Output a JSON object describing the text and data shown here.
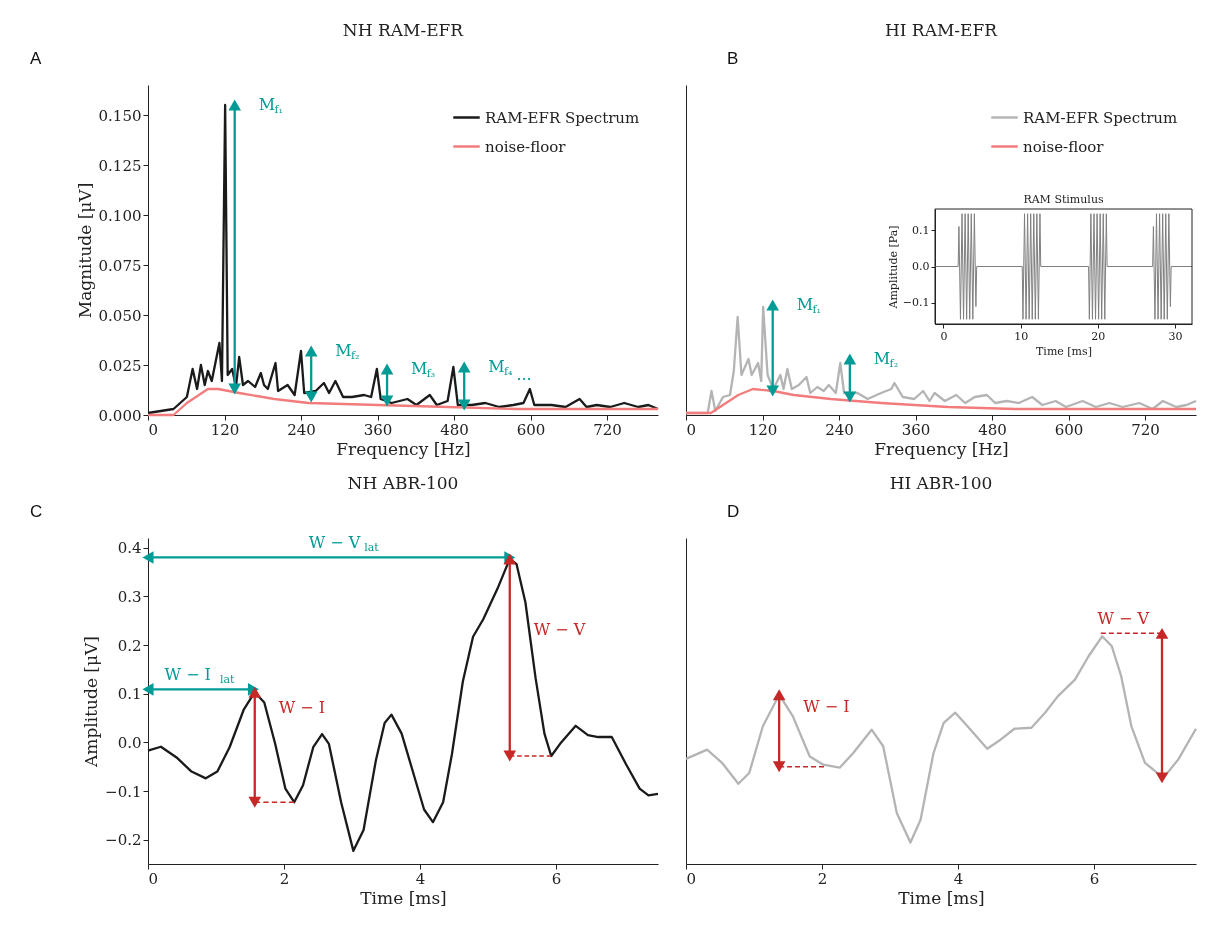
{
  "chart_data": [
    {
      "type": "line",
      "title": "NH RAM-EFR",
      "xlabel": "Frequency [Hz]",
      "ylabel": "Magnitude [μV]",
      "xlim": [
        0,
        800
      ],
      "ylim": [
        0,
        0.165
      ],
      "xticks": [
        0,
        120,
        240,
        360,
        480,
        600,
        720
      ],
      "yticks": [
        {
          "value": 0,
          "label": "0.000"
        },
        0.025,
        {
          "value": 0.05,
          "label": "0.050"
        },
        0.075,
        {
          "value": 0.1,
          "label": "0.100"
        },
        0.125,
        {
          "value": 0.15,
          "label": "0.150"
        }
      ],
      "legend": "top right",
      "annotations": [
        "A",
        {
          "text": "M$_{f₁}$",
          "x": 136,
          "y": 0.155
        },
        {
          "text": "M$_{f₂}$",
          "x": 256,
          "y": 0.032
        },
        {
          "text": "M$_{f₃}$",
          "x": 375,
          "y": 0.023
        },
        {
          "text": "M$_{f₄}$",
          "x": 496,
          "y": 0.024
        },
        {
          "text": "...",
          "x": 599,
          "y": 0.013
        }
      ],
      "series": [
        {
          "name": "RAM-EFR Spectrum",
          "color": "#1a1a1a",
          "x": [
            0,
            40,
            61,
            70,
            77,
            83,
            89,
            94,
            100,
            112,
            116,
            121,
            125,
            132,
            138,
            143,
            149,
            157,
            168,
            177,
            182,
            188,
            200,
            204,
            219,
            230,
            240,
            245,
            263,
            276,
            284,
            294,
            306,
            320,
            339,
            350,
            359,
            365,
            382,
            407,
            421,
            442,
            453,
            470,
            479,
            486,
            508,
            529,
            551,
            573,
            589,
            599,
            606,
            633,
            655,
            677,
            688,
            704,
            725,
            747,
            769,
            785,
            800
          ],
          "values": [
            0.001,
            0.003,
            0.009,
            0.023,
            0.013,
            0.025,
            0.015,
            0.022,
            0.017,
            0.036,
            0.017,
            0.155,
            0.02,
            0.023,
            0.014,
            0.029,
            0.015,
            0.017,
            0.014,
            0.021,
            0.015,
            0.013,
            0.026,
            0.012,
            0.015,
            0.01,
            0.032,
            0.011,
            0.012,
            0.016,
            0.011,
            0.017,
            0.009,
            0.009,
            0.01,
            0.009,
            0.023,
            0.008,
            0.006,
            0.008,
            0.005,
            0.01,
            0.005,
            0.007,
            0.024,
            0.005,
            0.005,
            0.006,
            0.004,
            0.005,
            0.006,
            0.013,
            0.005,
            0.005,
            0.004,
            0.008,
            0.004,
            0.005,
            0.004,
            0.006,
            0.004,
            0.005,
            0.003
          ]
        },
        {
          "name": "noise-floor",
          "color": "#f27c7c",
          "x": [
            0,
            40,
            61,
            94,
            110,
            143,
            198,
            252,
            361,
            470,
            579,
            688,
            800
          ],
          "values": [
            0,
            0,
            0.006,
            0.013,
            0.013,
            0.011,
            0.008,
            0.006,
            0.005,
            0.004,
            0.003,
            0.003,
            0.003
          ]
        },
        {
          "color": "#009b95",
          "marker": "triangle",
          "x": [
            136,
            136
          ],
          "values": [
            0.013,
            0.155
          ]
        },
        {
          "color": "#009b95",
          "marker": "triangle",
          "x": [
            256,
            256
          ],
          "values": [
            0.009,
            0.032
          ]
        },
        {
          "color": "#009b95",
          "marker": "triangle",
          "x": [
            375,
            375
          ],
          "values": [
            0.007,
            0.023
          ]
        },
        {
          "color": "#009b95",
          "marker": "triangle",
          "x": [
            496,
            496
          ],
          "values": [
            0.005,
            0.024
          ]
        }
      ]
    },
    {
      "type": "line",
      "title": "HI RAM-EFR",
      "xlabel": "Frequency [Hz]",
      "xlim": [
        0,
        800
      ],
      "ylim": [
        0,
        0.165
      ],
      "xticks": [
        0,
        120,
        240,
        360,
        480,
        600,
        720
      ],
      "tick_labels": "x",
      "legend": "top right",
      "annotations": [
        "B",
        {
          "text": "M$_{f₁}$",
          "x": 136,
          "y": 0.055
        },
        {
          "text": "M$_{f₂}$",
          "x": 257,
          "y": 0.028
        }
      ],
      "series": [
        {
          "name": "RAM-EFR Spectrum",
          "color": "#b4b4b4",
          "x": [
            0,
            34,
            40,
            46,
            58,
            69,
            75,
            81,
            87,
            98,
            103,
            113,
            118,
            121,
            128,
            137,
            148,
            153,
            159,
            166,
            177,
            189,
            195,
            206,
            216,
            224,
            235,
            242,
            248,
            269,
            285,
            306,
            322,
            327,
            340,
            358,
            372,
            382,
            390,
            406,
            424,
            438,
            453,
            472,
            485,
            503,
            522,
            543,
            559,
            580,
            596,
            622,
            643,
            664,
            685,
            711,
            732,
            748,
            769,
            785,
            800
          ],
          "values": [
            0.001,
            0.001,
            0.012,
            0.002,
            0.009,
            0.01,
            0.022,
            0.049,
            0.02,
            0.028,
            0.02,
            0.026,
            0.017,
            0.054,
            0.02,
            0.013,
            0.02,
            0.013,
            0.023,
            0.013,
            0.015,
            0.019,
            0.011,
            0.014,
            0.012,
            0.015,
            0.011,
            0.026,
            0.011,
            0.011,
            0.008,
            0.011,
            0.013,
            0.016,
            0.009,
            0.008,
            0.012,
            0.007,
            0.011,
            0.007,
            0.01,
            0.006,
            0.009,
            0.01,
            0.006,
            0.007,
            0.006,
            0.009,
            0.005,
            0.007,
            0.004,
            0.007,
            0.004,
            0.006,
            0.004,
            0.006,
            0.003,
            0.007,
            0.004,
            0.005,
            0.007
          ]
        },
        {
          "name": "noise-floor",
          "color": "#f27c7c",
          "x": [
            0,
            39,
            58,
            82,
            105,
            137,
            169,
            227,
            306,
            411,
            516,
            622,
            800
          ],
          "values": [
            0.001,
            0.001,
            0.005,
            0.01,
            0.013,
            0.012,
            0.01,
            0.008,
            0.006,
            0.004,
            0.003,
            0.003,
            0.003
          ]
        },
        {
          "color": "#009b95",
          "marker": "triangle",
          "x": [
            136,
            136
          ],
          "values": [
            0.012,
            0.055
          ]
        },
        {
          "color": "#009b95",
          "marker": "triangle",
          "x": [
            257,
            257
          ],
          "values": [
            0.009,
            0.028
          ]
        }
      ]
    },
    {
      "type": "line",
      "title": "RAM Stimulus",
      "xlabel": "Time [ms]",
      "ylabel": "Amplitude [Pa]",
      "xlim": [
        -1.1,
        32.2
      ],
      "ylim": [
        -0.158,
        0.158
      ],
      "xticks": [
        0,
        10,
        20,
        30
      ],
      "yticks": [
        {
          "value": -0.1,
          "label": "−0.1"
        },
        {
          "value": 0,
          "label": "0.0"
        },
        0.1
      ],
      "series": [
        {
          "color": "#7f7f7f",
          "x": [
            -1.1,
            1.9,
            2.0,
            2.2,
            2.4,
            2.6,
            2.8,
            3.0,
            3.2,
            3.4,
            3.6,
            3.8,
            4.0,
            4.2,
            4.3,
            10.2,
            10.3,
            10.5,
            10.7,
            10.9,
            11.1,
            11.3,
            11.5,
            11.7,
            11.9,
            12.1,
            12.3,
            12.5,
            12.6,
            18.8,
            18.9,
            19.1,
            19.3,
            19.5,
            19.7,
            19.9,
            20.1,
            20.3,
            20.5,
            20.7,
            20.9,
            21.1,
            21.2,
            27.1,
            27.2,
            27.4,
            27.6,
            27.8,
            28.0,
            28.2,
            28.4,
            28.6,
            28.8,
            29.0,
            29.2,
            29.4,
            29.5,
            32.2
          ],
          "values": [
            0,
            0,
            0.11,
            -0.145,
            0.145,
            -0.145,
            0.145,
            -0.145,
            0.145,
            -0.145,
            0.145,
            -0.145,
            0.145,
            -0.11,
            0,
            0,
            -0.145,
            0.145,
            -0.145,
            0.145,
            -0.145,
            0.145,
            -0.145,
            0.145,
            -0.145,
            0.145,
            -0.145,
            0.145,
            0,
            0,
            -0.145,
            0.145,
            -0.145,
            0.145,
            -0.145,
            0.145,
            -0.145,
            0.145,
            -0.145,
            0.145,
            -0.145,
            0.145,
            0,
            0,
            0.11,
            -0.145,
            0.145,
            -0.145,
            0.145,
            -0.145,
            0.145,
            -0.145,
            0.145,
            -0.145,
            0.145,
            -0.11,
            0,
            0
          ]
        }
      ]
    },
    {
      "type": "line",
      "title": "NH ABR-100",
      "xlabel": "Time [ms]",
      "ylabel": "Amplitude [μV]",
      "xlim": [
        0,
        7.5
      ],
      "ylim": [
        -0.25,
        0.42
      ],
      "xticks": [
        0,
        2,
        4,
        6
      ],
      "yticks": [
        {
          "value": -0.2,
          "label": "−0.2"
        },
        {
          "value": -0.1,
          "label": "−0.1"
        },
        {
          "value": 0,
          "label": "0.0"
        },
        0.1,
        0.2,
        0.3,
        0.4
      ],
      "annotations": [
        "C",
        {
          "text": "W − V$_{lat}$",
          "x": 2.9,
          "y": 0.38
        },
        {
          "text": "W − I$_{lat}$",
          "x": 0.78,
          "y": 0.109
        },
        {
          "text": "W − I",
          "x": 1.57,
          "y": 0.071
        },
        {
          "text": "W − V",
          "x": 5.32,
          "y": 0.23
        }
      ],
      "series": [
        {
          "color": "#1a1a1a",
          "x": [
            0,
            0.19,
            0.42,
            0.64,
            0.85,
            1.02,
            1.2,
            1.41,
            1.57,
            1.71,
            1.87,
            2.02,
            2.15,
            2.28,
            2.43,
            2.56,
            2.66,
            2.84,
            3.02,
            3.17,
            3.35,
            3.48,
            3.58,
            3.73,
            3.91,
            4.06,
            4.19,
            4.34,
            4.47,
            4.63,
            4.78,
            4.93,
            5.14,
            5.32,
            5.42,
            5.55,
            5.7,
            5.83,
            5.93,
            6.06,
            6.29,
            6.47,
            6.62,
            6.82,
            7.03,
            7.23,
            7.36,
            7.5
          ],
          "values": [
            -0.017,
            -0.009,
            -0.031,
            -0.06,
            -0.074,
            -0.06,
            -0.01,
            0.068,
            0.103,
            0.082,
            -0.003,
            -0.095,
            -0.123,
            -0.088,
            -0.01,
            0.017,
            -0.003,
            -0.123,
            -0.223,
            -0.18,
            -0.038,
            0.04,
            0.057,
            0.018,
            -0.067,
            -0.138,
            -0.164,
            -0.123,
            -0.024,
            0.125,
            0.217,
            0.253,
            0.316,
            0.377,
            0.366,
            0.288,
            0.132,
            0.018,
            -0.028,
            -0.003,
            0.034,
            0.015,
            0.011,
            0.011,
            -0.045,
            -0.095,
            -0.109,
            -0.106
          ]
        },
        {
          "color": "#009b95",
          "marker": "triangle",
          "x": [
            0,
            5.32
          ],
          "values": [
            0.38,
            0.38
          ]
        },
        {
          "color": "#009b95",
          "marker": "triangle",
          "x": [
            0,
            1.55
          ],
          "values": [
            0.109,
            0.109
          ]
        },
        {
          "color": "#c62828",
          "marker": "triangle",
          "x": [
            1.57,
            1.57
          ],
          "values": [
            0.103,
            -0.123
          ]
        },
        {
          "color": "#c62828",
          "line_style": "dashed",
          "x": [
            1.57,
            2.15
          ],
          "values": [
            -0.123,
            -0.123
          ]
        },
        {
          "color": "#c62828",
          "marker": "triangle",
          "x": [
            5.32,
            5.32
          ],
          "values": [
            0.377,
            -0.028
          ]
        },
        {
          "color": "#c62828",
          "line_style": "dashed",
          "x": [
            5.32,
            5.93
          ],
          "values": [
            -0.028,
            -0.028
          ]
        }
      ]
    },
    {
      "type": "line",
      "title": "HI ABR-100",
      "xlabel": "Time [ms]",
      "xlim": [
        0,
        7.5
      ],
      "ylim": [
        -0.25,
        0.42
      ],
      "xticks": [
        0,
        2,
        4,
        6
      ],
      "tick_labels": "x",
      "annotations": [
        "D",
        {
          "text": "W − I",
          "x": 1.37,
          "y": 0.073
        },
        {
          "text": "W − V",
          "x": 6.45,
          "y": 0.224
        }
      ],
      "series": [
        {
          "color": "#b4b4b4",
          "x": [
            0,
            0.31,
            0.53,
            0.77,
            0.93,
            1.13,
            1.37,
            1.57,
            1.82,
            2.02,
            2.26,
            2.46,
            2.73,
            2.9,
            3.1,
            3.3,
            3.45,
            3.64,
            3.79,
            3.96,
            4.14,
            4.43,
            4.63,
            4.83,
            5.08,
            5.28,
            5.47,
            5.72,
            5.92,
            6.12,
            6.26,
            6.4,
            6.55,
            6.75,
            7.02,
            7.24,
            7.5
          ],
          "values": [
            -0.034,
            -0.015,
            -0.042,
            -0.085,
            -0.063,
            0.033,
            0.098,
            0.054,
            -0.029,
            -0.046,
            -0.052,
            -0.022,
            0.026,
            -0.008,
            -0.145,
            -0.206,
            -0.159,
            -0.022,
            0.04,
            0.061,
            0.033,
            -0.013,
            0.006,
            0.028,
            0.03,
            0.061,
            0.095,
            0.129,
            0.177,
            0.218,
            0.198,
            0.136,
            0.033,
            -0.042,
            -0.073,
            -0.035,
            0.028
          ]
        },
        {
          "color": "#c62828",
          "marker": "triangle",
          "x": [
            1.37,
            1.37
          ],
          "values": [
            0.098,
            -0.05
          ]
        },
        {
          "color": "#c62828",
          "line_style": "dashed",
          "x": [
            1.37,
            2.03
          ],
          "values": [
            -0.05,
            -0.05
          ]
        },
        {
          "color": "#c62828",
          "marker": "triangle",
          "x": [
            7.0,
            7.0
          ],
          "values": [
            0.224,
            -0.073
          ]
        },
        {
          "color": "#c62828",
          "line_style": "dashed",
          "x": [
            6.1,
            7.0
          ],
          "values": [
            0.224,
            0.224
          ]
        }
      ]
    }
  ]
}
